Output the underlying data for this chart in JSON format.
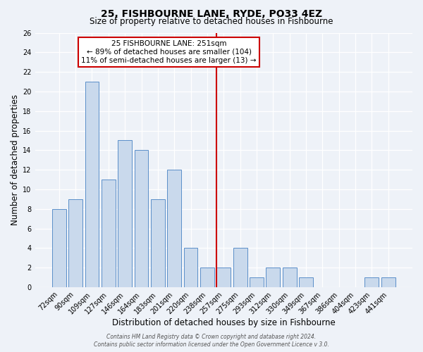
{
  "title": "25, FISHBOURNE LANE, RYDE, PO33 4EZ",
  "subtitle": "Size of property relative to detached houses in Fishbourne",
  "xlabel": "Distribution of detached houses by size in Fishbourne",
  "ylabel": "Number of detached properties",
  "categories": [
    "72sqm",
    "90sqm",
    "109sqm",
    "127sqm",
    "146sqm",
    "164sqm",
    "183sqm",
    "201sqm",
    "220sqm",
    "238sqm",
    "257sqm",
    "275sqm",
    "293sqm",
    "312sqm",
    "330sqm",
    "349sqm",
    "367sqm",
    "386sqm",
    "404sqm",
    "423sqm",
    "441sqm"
  ],
  "values": [
    8,
    9,
    21,
    11,
    15,
    14,
    9,
    12,
    4,
    2,
    2,
    4,
    1,
    2,
    2,
    1,
    0,
    0,
    0,
    1,
    1
  ],
  "bar_color": "#c9d9ec",
  "bar_edge_color": "#5b8fc9",
  "ylim": [
    0,
    26
  ],
  "yticks": [
    0,
    2,
    4,
    6,
    8,
    10,
    12,
    14,
    16,
    18,
    20,
    22,
    24,
    26
  ],
  "vline_index": 10,
  "vline_color": "#cc0000",
  "annotation_title": "25 FISHBOURNE LANE: 251sqm",
  "annotation_line1": "← 89% of detached houses are smaller (104)",
  "annotation_line2": "11% of semi-detached houses are larger (13) →",
  "annotation_box_color": "#cc0000",
  "footer_line1": "Contains HM Land Registry data © Crown copyright and database right 2024.",
  "footer_line2": "Contains public sector information licensed under the Open Government Licence v 3.0.",
  "background_color": "#eef2f8",
  "grid_color": "#ffffff",
  "title_fontsize": 10,
  "subtitle_fontsize": 8.5,
  "axis_label_fontsize": 8.5,
  "tick_fontsize": 7,
  "footer_fontsize": 5.5
}
